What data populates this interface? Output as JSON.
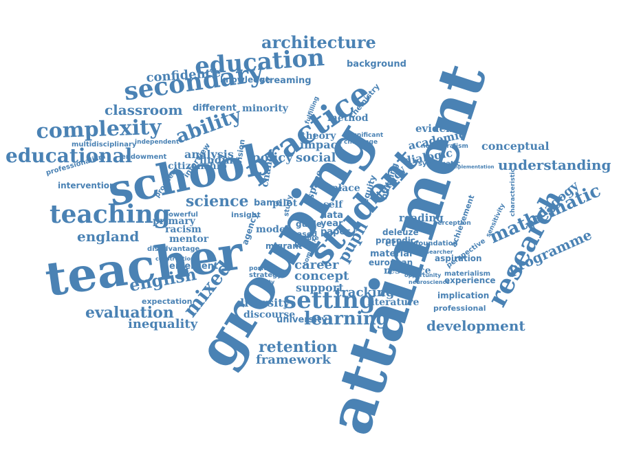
{
  "cloud": {
    "color": "#4a82b4",
    "background": "#ffffff",
    "words": [
      "attainment",
      "grouping",
      "teacher",
      "school",
      "student",
      "research",
      "practice",
      "secondary",
      "education",
      "teaching",
      "complexity",
      "educational",
      "ability",
      "setting",
      "mathematic",
      "english",
      "learning",
      "pupil",
      "mixed",
      "evaluation",
      "architecture",
      "classroom",
      "confidence",
      "science",
      "england",
      "retention",
      "framework",
      "development",
      "understanding",
      "programme",
      "pedagogy",
      "conceptual",
      "inequality",
      "policy",
      "tracking",
      "social",
      "literacy",
      "analysis",
      "career",
      "concept",
      "support",
      "diversity",
      "resource",
      "evidence",
      "academic",
      "dialogic",
      "reading",
      "literature",
      "discourse",
      "university",
      "primary",
      "racism",
      "mentor",
      "model",
      "minority",
      "different",
      "method",
      "impact",
      "theory",
      "place",
      "self",
      "data",
      "year",
      "paper",
      "ethnic",
      "material",
      "european",
      "emergent",
      "expectation",
      "intervention",
      "professionalism",
      "endowment",
      "multidisciplinary",
      "independent",
      "citizenship",
      "knowledge",
      "streaming",
      "background",
      "chemistry",
      "finding",
      "bame",
      "pilot",
      "insight",
      "experience",
      "implication",
      "professional",
      "aspiration",
      "achievement",
      "perception",
      "foundation",
      "researcher",
      "characteristic",
      "implementation",
      "systematic",
      "neoliberalism",
      "sensitivity",
      "perspective",
      "materialism",
      "opportunity",
      "neuroscience",
      "migrant",
      "lower",
      "guide",
      "based",
      "future",
      "equity",
      "building",
      "deleuze",
      "prosodic",
      "space",
      "change",
      "revision",
      "agency",
      "study",
      "position",
      "strategy",
      "complex",
      "quality",
      "disadvantage",
      "powerful",
      "construction",
      "prophecy",
      "interview",
      "fulfilling",
      "challenge",
      "significant",
      "teaching"
    ]
  }
}
